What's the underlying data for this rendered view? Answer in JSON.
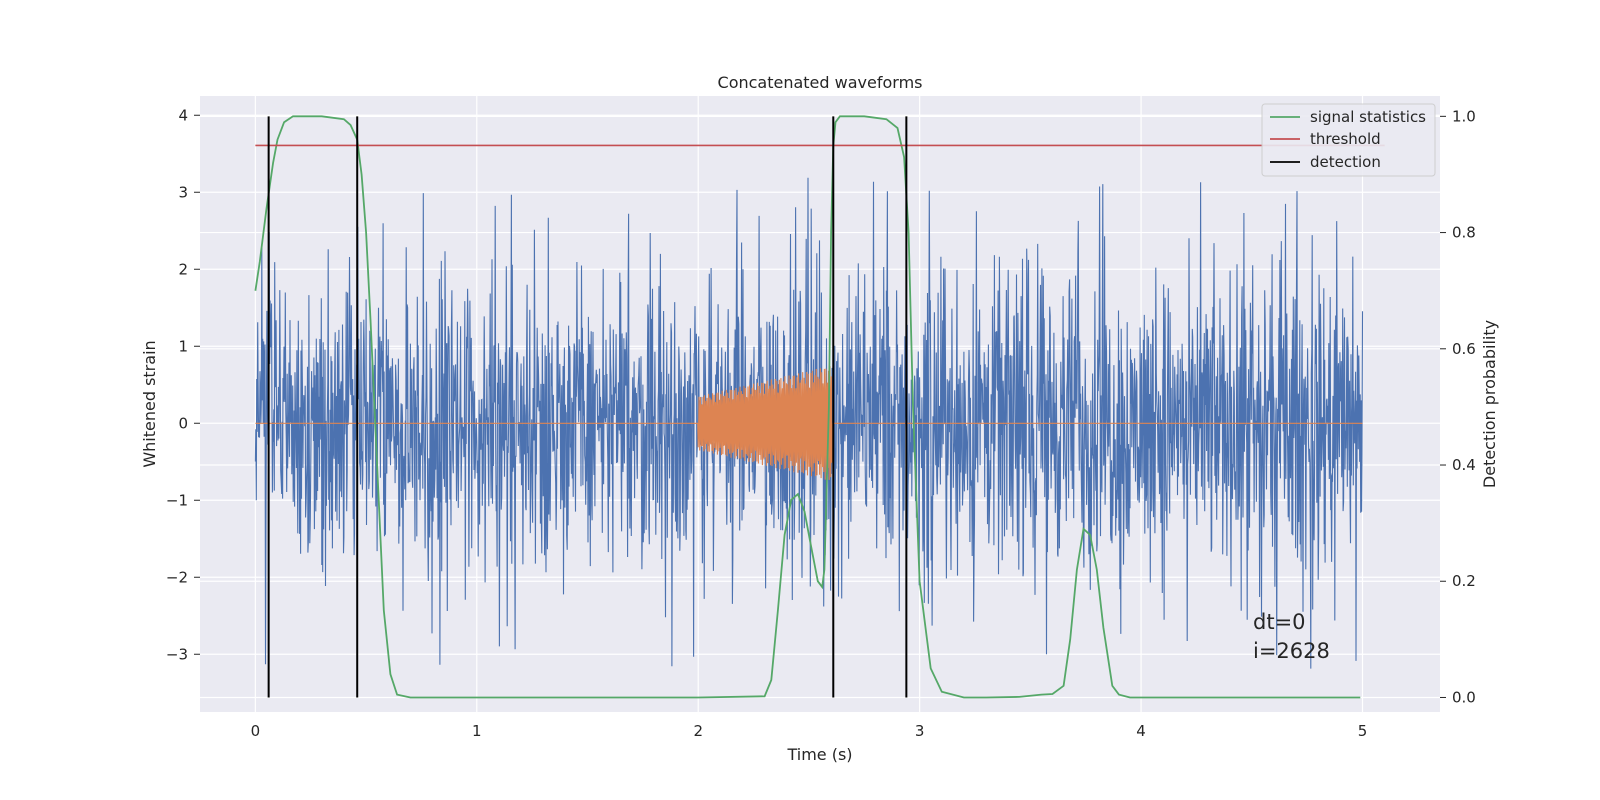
{
  "chart_data": {
    "type": "line",
    "title": "Concatenated waveforms",
    "xlabel": "Time (s)",
    "ylabel_left": "Whitened strain",
    "ylabel_right": "Detection probability",
    "xlim": [
      -0.25,
      5.35
    ],
    "ylim_left": [
      -3.75,
      4.25
    ],
    "ylim_right": [
      -0.025,
      1.035
    ],
    "x_ticks": [
      "0",
      "1",
      "2",
      "3",
      "4",
      "5"
    ],
    "y_left_ticks": [
      "−3",
      "−2",
      "−1",
      "0",
      "1",
      "2",
      "3",
      "4"
    ],
    "y_right_ticks": [
      "0.0",
      "0.2",
      "0.4",
      "0.6",
      "0.8",
      "1.0"
    ],
    "grid": true,
    "legend_position": "top-right",
    "colors": {
      "strain": "#4c72b0",
      "template": "#dd8452",
      "signal_statistics": "#55a868",
      "threshold": "#c44e52",
      "detection": "#000000",
      "background": "#eaeaf2"
    },
    "series": [
      {
        "name": "signal statistics",
        "axis": "right",
        "x": [
          0,
          0.02,
          0.05,
          0.08,
          0.1,
          0.13,
          0.17,
          0.2,
          0.3,
          0.4,
          0.43,
          0.46,
          0.48,
          0.5,
          0.52,
          0.55,
          0.58,
          0.61,
          0.64,
          0.7,
          1.0,
          1.5,
          2.0,
          2.3,
          2.33,
          2.36,
          2.39,
          2.42,
          2.45,
          2.48,
          2.51,
          2.54,
          2.56,
          2.57,
          2.59,
          2.6,
          2.61,
          2.62,
          2.64,
          2.67,
          2.7,
          2.75,
          2.85,
          2.9,
          2.93,
          2.95,
          2.97,
          3.0,
          3.05,
          3.1,
          3.2,
          3.3,
          3.45,
          3.55,
          3.6,
          3.65,
          3.68,
          3.71,
          3.74,
          3.77,
          3.8,
          3.83,
          3.87,
          3.9,
          3.95,
          4.0,
          4.5,
          4.99
        ],
        "y": [
          0.7,
          0.75,
          0.84,
          0.92,
          0.96,
          0.99,
          1.0,
          1.0,
          1.0,
          0.995,
          0.985,
          0.96,
          0.9,
          0.8,
          0.65,
          0.4,
          0.15,
          0.04,
          0.005,
          0.0,
          0.0,
          0.0,
          0.0,
          0.002,
          0.03,
          0.15,
          0.28,
          0.34,
          0.35,
          0.32,
          0.26,
          0.2,
          0.19,
          0.22,
          0.5,
          0.8,
          0.95,
          0.99,
          1.0,
          1.0,
          1.0,
          1.0,
          0.995,
          0.98,
          0.93,
          0.8,
          0.5,
          0.2,
          0.05,
          0.01,
          0.0,
          0.0,
          0.001,
          0.005,
          0.006,
          0.02,
          0.1,
          0.22,
          0.29,
          0.28,
          0.22,
          0.12,
          0.02,
          0.005,
          0.0,
          0.0,
          0.0,
          0.0
        ]
      },
      {
        "name": "threshold",
        "axis": "right",
        "x": [
          0,
          5.1
        ],
        "y": [
          0.95,
          0.95
        ]
      },
      {
        "name": "detection",
        "axis": "right",
        "type": "vlines",
        "x": [
          0.06,
          0.46,
          2.61,
          2.94
        ],
        "y_range": [
          0,
          1.0
        ]
      },
      {
        "axis": "left",
        "type": "noise",
        "x_range": [
          0,
          5.0
        ],
        "amplitude_range": [
          -3.3,
          3.9
        ]
      },
      {
        "axis": "left",
        "type": "chirp",
        "x": [
          0,
          2.0,
          2.6,
          5.0
        ],
        "envelope": [
          0,
          0.35,
          0.75,
          0
        ]
      }
    ],
    "annotations": [
      "dt=0",
      "i=2628"
    ]
  }
}
